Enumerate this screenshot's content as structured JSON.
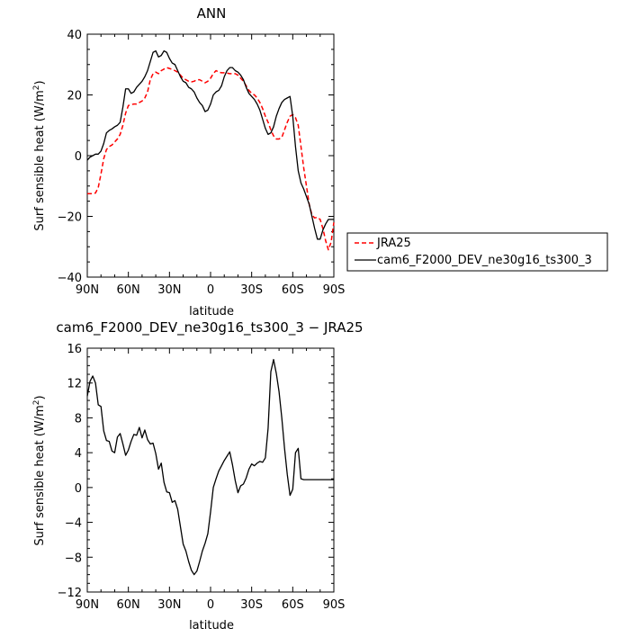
{
  "chart_data": [
    {
      "type": "line",
      "title": "ANN",
      "xlabel": "latitude",
      "ylabel": "Surf sensible heat (W/m²)",
      "ylabel_main": "Surf sensible heat (W/m",
      "ylabel_sup": "2",
      "ylabel_tail": ")",
      "x_direction": "90N (left) to 90S (right); N positive",
      "xlim": [
        90,
        -90
      ],
      "ylim": [
        -40,
        40
      ],
      "x_ticks": [
        90,
        60,
        30,
        0,
        -30,
        -60,
        -90
      ],
      "x_tick_labels": [
        "90N",
        "60N",
        "30N",
        "0",
        "30S",
        "60S",
        "90S"
      ],
      "y_ticks": [
        -40,
        -20,
        0,
        20,
        40
      ],
      "y_tick_labels": [
        "−40",
        "−20",
        "0",
        "20",
        "40"
      ],
      "legend_position": "outside-right",
      "series": [
        {
          "name": "JRA25",
          "color": "#ff0000",
          "style": "dashed",
          "x": [
            90,
            88,
            86,
            84,
            82,
            80,
            78,
            76,
            74,
            72,
            70,
            68,
            66,
            64,
            62,
            60,
            58,
            56,
            54,
            52,
            50,
            48,
            46,
            44,
            42,
            40,
            38,
            36,
            34,
            32,
            30,
            28,
            26,
            24,
            22,
            20,
            18,
            16,
            14,
            12,
            10,
            8,
            6,
            4,
            2,
            0,
            -2,
            -4,
            -6,
            -8,
            -10,
            -12,
            -14,
            -16,
            -18,
            -20,
            -22,
            -24,
            -26,
            -28,
            -30,
            -32,
            -34,
            -36,
            -38,
            -40,
            -42,
            -44,
            -46,
            -48,
            -50,
            -52,
            -54,
            -56,
            -58,
            -60,
            -62,
            -64,
            -66,
            -68,
            -70,
            -72,
            -74,
            -76,
            -78,
            -80,
            -82,
            -84,
            -86,
            -88,
            -90
          ],
          "y": [
            -12.5,
            -12.5,
            -12.5,
            -12.3,
            -10.5,
            -6.0,
            -1.0,
            2.0,
            3.0,
            3.5,
            4.5,
            5.5,
            7.0,
            10.0,
            14.0,
            16.5,
            16.8,
            17.0,
            17.0,
            17.5,
            18.0,
            19.0,
            21.0,
            25.0,
            27.0,
            27.5,
            27.0,
            28.0,
            28.5,
            29.0,
            28.7,
            28.4,
            28.0,
            27.5,
            26.5,
            25.5,
            25.0,
            24.5,
            24.3,
            24.5,
            25.0,
            25.0,
            24.5,
            24.0,
            24.5,
            25.5,
            27.0,
            28.0,
            27.5,
            27.3,
            27.3,
            27.2,
            27.0,
            27.0,
            27.0,
            26.5,
            25.5,
            24.5,
            23.0,
            21.5,
            20.5,
            20.0,
            19.0,
            17.5,
            15.5,
            13.0,
            11.0,
            8.5,
            6.5,
            5.5,
            5.5,
            6.0,
            8.5,
            11.0,
            13.0,
            13.5,
            12.5,
            10.0,
            3.0,
            -4.0,
            -10.0,
            -16.0,
            -19.5,
            -20.5,
            -20.3,
            -21.0,
            -24.0,
            -28.0,
            -31.0,
            -28.5,
            -22.0
          ]
        },
        {
          "name": "cam6_F2000_DEV_ne30g16_ts300_3",
          "color": "#000000",
          "style": "solid",
          "x": [
            90,
            88,
            86,
            84,
            82,
            80,
            78,
            76,
            74,
            72,
            70,
            68,
            66,
            64,
            62,
            60,
            58,
            56,
            54,
            52,
            50,
            48,
            46,
            44,
            42,
            40,
            38,
            36,
            34,
            32,
            30,
            28,
            26,
            24,
            22,
            20,
            18,
            16,
            14,
            12,
            10,
            8,
            6,
            4,
            2,
            0,
            -2,
            -4,
            -6,
            -8,
            -10,
            -12,
            -14,
            -16,
            -18,
            -20,
            -22,
            -24,
            -26,
            -28,
            -30,
            -32,
            -34,
            -36,
            -38,
            -40,
            -42,
            -44,
            -46,
            -48,
            -50,
            -52,
            -54,
            -56,
            -58,
            -60,
            -62,
            -64,
            -66,
            -68,
            -70,
            -72,
            -74,
            -76,
            -78,
            -80,
            -82,
            -84,
            -86,
            -88,
            -90
          ],
          "y": [
            -1.5,
            -0.5,
            0.0,
            0.5,
            0.5,
            1.5,
            4.0,
            7.5,
            8.3,
            8.8,
            9.5,
            10.0,
            11.0,
            16.0,
            22.0,
            22.0,
            20.5,
            21.0,
            22.5,
            23.5,
            24.5,
            26.0,
            28.0,
            31.0,
            34.0,
            34.5,
            32.5,
            33.0,
            34.5,
            34.0,
            32.0,
            30.5,
            30.0,
            28.0,
            26.0,
            24.5,
            24.0,
            22.5,
            22.0,
            21.0,
            19.0,
            17.5,
            16.5,
            14.5,
            15.0,
            17.0,
            20.0,
            21.0,
            21.5,
            23.0,
            26.0,
            28.0,
            29.0,
            29.0,
            28.0,
            27.5,
            26.5,
            25.0,
            22.5,
            20.5,
            19.5,
            18.5,
            17.0,
            15.0,
            12.0,
            9.0,
            7.0,
            7.5,
            9.5,
            13.0,
            15.5,
            17.5,
            18.5,
            19.0,
            19.5,
            13.0,
            3.0,
            -5.0,
            -9.0,
            -11.0,
            -13.5,
            -16.0,
            -20.0,
            -24.0,
            -27.5,
            -27.5,
            -24.5,
            -22.5,
            -21.0,
            -21.0,
            -21.0
          ]
        }
      ]
    },
    {
      "type": "line",
      "title": "cam6_F2000_DEV_ne30g16_ts300_3 − JRA25",
      "xlabel": "latitude",
      "ylabel": "Surf sensible heat (W/m²)",
      "ylabel_main": "Surf sensible heat (W/m",
      "ylabel_sup": "2",
      "ylabel_tail": ")",
      "x_direction": "90N (left) to 90S (right); N positive",
      "xlim": [
        90,
        -90
      ],
      "ylim": [
        -12,
        16
      ],
      "x_ticks": [
        90,
        60,
        30,
        0,
        -30,
        -60,
        -90
      ],
      "x_tick_labels": [
        "90N",
        "60N",
        "30N",
        "0",
        "30S",
        "60S",
        "90S"
      ],
      "y_ticks": [
        -12,
        -8,
        -4,
        0,
        4,
        8,
        12,
        16
      ],
      "y_tick_labels": [
        "−12",
        "−8",
        "−4",
        "0",
        "4",
        "8",
        "12",
        "16"
      ],
      "series": [
        {
          "color": "#000000",
          "style": "solid",
          "x": [
            90,
            88,
            86,
            84,
            82,
            80,
            78,
            76,
            74,
            72,
            70,
            68,
            66,
            64,
            62,
            60,
            58,
            56,
            54,
            52,
            50,
            48,
            46,
            44,
            42,
            40,
            38,
            36,
            34,
            32,
            30,
            28,
            26,
            24,
            22,
            20,
            18,
            16,
            14,
            12,
            10,
            8,
            6,
            4,
            2,
            0,
            -2,
            -4,
            -6,
            -8,
            -10,
            -12,
            -14,
            -16,
            -18,
            -20,
            -22,
            -24,
            -26,
            -28,
            -30,
            -32,
            -34,
            -36,
            -38,
            -40,
            -42,
            -44,
            -46,
            -48,
            -50,
            -52,
            -54,
            -56,
            -58,
            -60,
            -62,
            -64,
            -66,
            -68,
            -70,
            -72,
            -74,
            -76,
            -78,
            -80,
            -82,
            -84,
            -86,
            -88,
            -90
          ],
          "y": [
            10.5,
            12.2,
            12.8,
            12.0,
            9.5,
            9.3,
            6.5,
            5.4,
            5.3,
            4.2,
            4.0,
            5.8,
            6.2,
            5.0,
            3.7,
            4.3,
            5.3,
            6.1,
            6.0,
            6.9,
            5.7,
            6.6,
            5.5,
            5.0,
            5.1,
            3.9,
            2.1,
            2.8,
            0.6,
            -0.5,
            -0.6,
            -1.7,
            -1.5,
            -2.5,
            -4.5,
            -6.5,
            -7.3,
            -8.5,
            -9.5,
            -10.0,
            -9.6,
            -8.5,
            -7.3,
            -6.4,
            -5.3,
            -2.8,
            0.0,
            1.0,
            1.9,
            2.5,
            3.1,
            3.6,
            4.1,
            2.6,
            0.8,
            -0.6,
            0.2,
            0.4,
            1.1,
            2.1,
            2.7,
            2.5,
            2.8,
            3.0,
            2.9,
            3.4,
            6.8,
            13.3,
            14.7,
            13.1,
            11.0,
            8.0,
            4.5,
            1.5,
            -0.9,
            -0.2,
            4.0,
            4.5,
            1.0,
            0.9,
            0.9,
            0.9,
            0.9,
            0.9,
            0.9,
            0.9,
            0.9,
            0.9,
            0.9,
            0.9,
            0.9
          ]
        }
      ]
    }
  ]
}
